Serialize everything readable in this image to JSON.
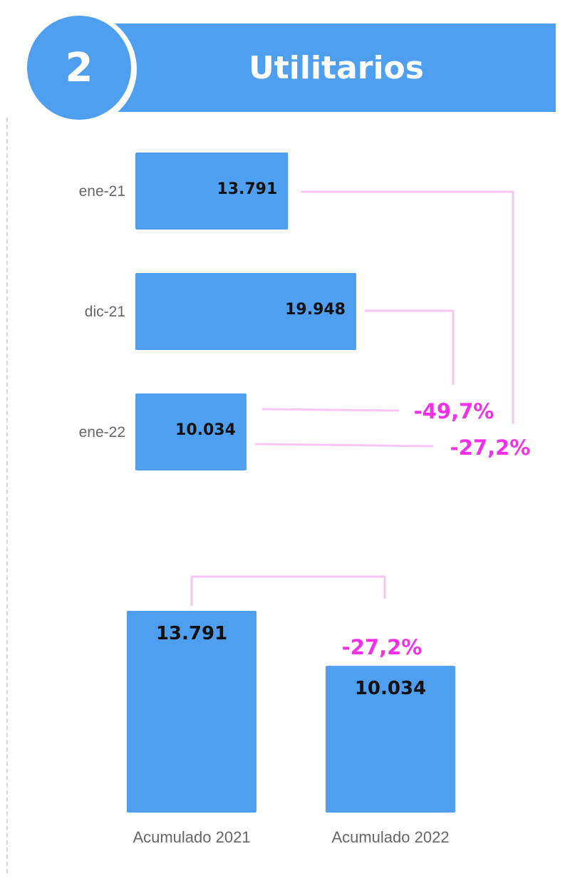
{
  "header": {
    "number": "2",
    "title": "Utilitarios"
  },
  "chart_data": [
    {
      "type": "bar",
      "orientation": "horizontal",
      "categories": [
        "ene-21",
        "dic-21",
        "ene-22"
      ],
      "values": [
        13791,
        19948,
        10034
      ],
      "value_labels": [
        "13.791",
        "19.948",
        "10.034"
      ],
      "color": "#4f9ff0",
      "annotations": [
        {
          "from": "dic-21",
          "to": "ene-22",
          "text": "-49,7%"
        },
        {
          "from": "ene-21",
          "to": "ene-22",
          "text": "-27,2%"
        }
      ],
      "annotation_color": "#f531e8",
      "connector_color": "#f9c6f3"
    },
    {
      "type": "bar",
      "orientation": "vertical",
      "categories": [
        "Acumulado 2021",
        "Acumulado 2022"
      ],
      "values": [
        13791,
        10034
      ],
      "value_labels": [
        "13.791",
        "10.034"
      ],
      "color": "#4f9ff0",
      "annotations": [
        {
          "from": "Acumulado 2021",
          "to": "Acumulado 2022",
          "text": "-27,2%"
        }
      ],
      "annotation_color": "#f531e8",
      "connector_color": "#f9c6f3"
    }
  ]
}
